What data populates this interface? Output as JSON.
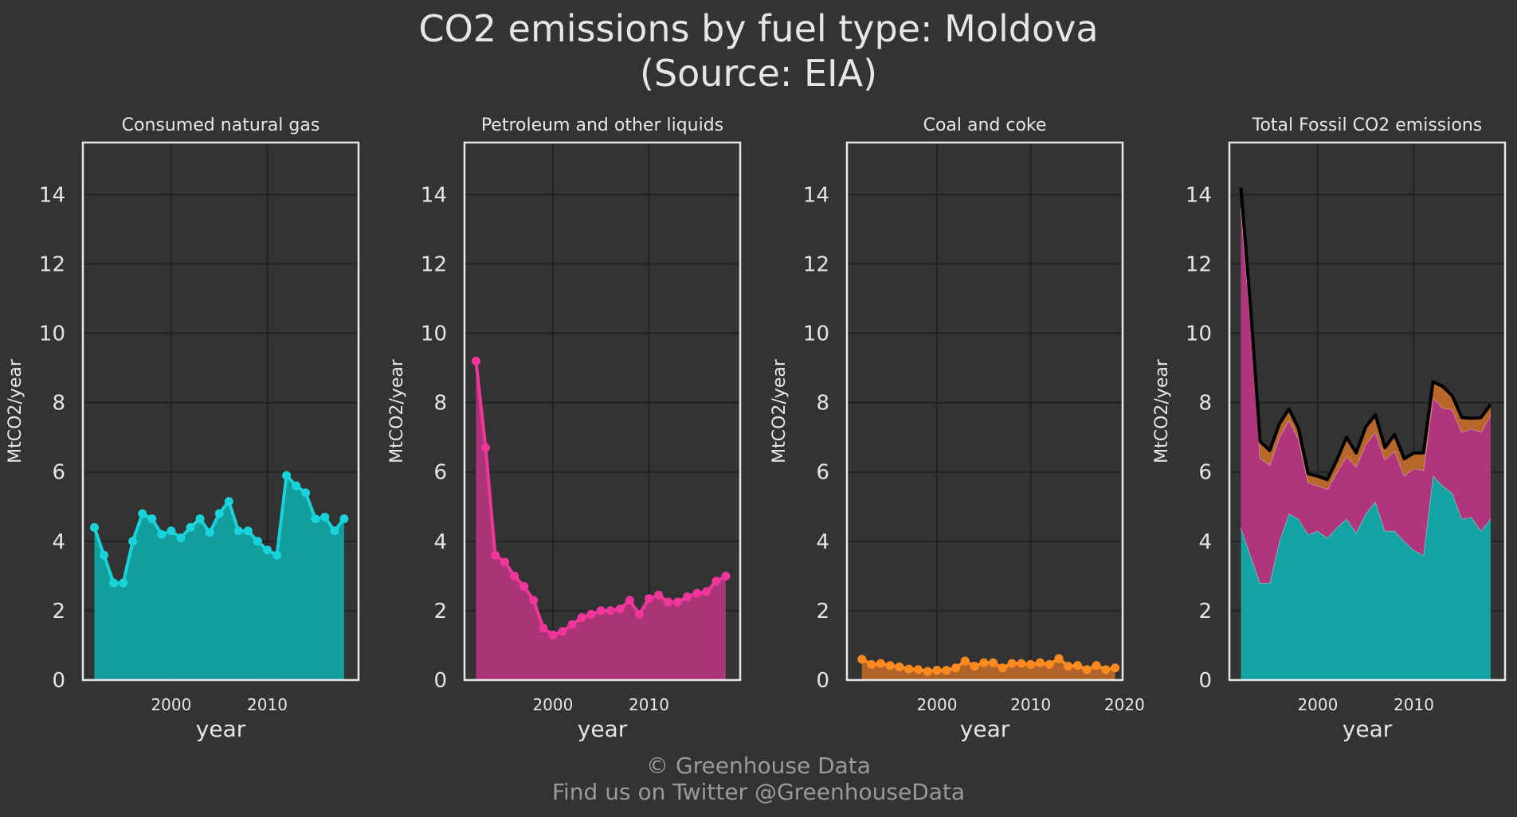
{
  "figure": {
    "title_line1": "CO2 emissions by fuel type: Moldova",
    "title_line2": "(Source: EIA)",
    "credit_line1": "© Greenhouse Data",
    "credit_line2": "Find us on Twitter @GreenhouseData"
  },
  "colors": {
    "background": "#333333",
    "grid": "#222222",
    "frame": "#e6e6e6",
    "text": "#e6e6e6",
    "credit": "#9a9a9a",
    "gas": "#19d3da",
    "gas_fill": "#13a3a3",
    "petroleum": "#f0359b",
    "petroleum_fill": "#b0357a",
    "coal": "#ff8a1f",
    "coal_fill": "#b8672a",
    "total_line": "#000000"
  },
  "chart_data": [
    {
      "type": "area",
      "title": "Consumed natural gas",
      "xlabel": "year",
      "ylabel": "MtCO2/year",
      "ylim": [
        0,
        15.5
      ],
      "xlim": [
        1990.8,
        2019.5
      ],
      "yticks": [
        0,
        2,
        4,
        6,
        8,
        10,
        12,
        14
      ],
      "xticks": [
        2000,
        2010
      ],
      "grid": true,
      "x": [
        1992,
        1993,
        1994,
        1995,
        1996,
        1997,
        1998,
        1999,
        2000,
        2001,
        2002,
        2003,
        2004,
        2005,
        2006,
        2007,
        2008,
        2009,
        2010,
        2011,
        2012,
        2013,
        2014,
        2015,
        2016,
        2017,
        2018
      ],
      "series": [
        {
          "values": [
            4.4,
            3.6,
            2.8,
            2.8,
            4.0,
            4.8,
            4.65,
            4.2,
            4.3,
            4.1,
            4.4,
            4.65,
            4.25,
            4.8,
            5.15,
            4.3,
            4.3,
            4.0,
            3.75,
            3.6,
            5.9,
            5.6,
            5.4,
            4.65,
            4.7,
            4.3,
            4.65
          ]
        }
      ]
    },
    {
      "type": "area",
      "title": "Petroleum and other liquids",
      "xlabel": "year",
      "ylabel": "MtCO2/year",
      "ylim": [
        0,
        15.5
      ],
      "xlim": [
        1990.8,
        2019.5
      ],
      "yticks": [
        0,
        2,
        4,
        6,
        8,
        10,
        12,
        14
      ],
      "xticks": [
        2000,
        2010
      ],
      "grid": true,
      "x": [
        1992,
        1993,
        1994,
        1995,
        1996,
        1997,
        1998,
        1999,
        2000,
        2001,
        2002,
        2003,
        2004,
        2005,
        2006,
        2007,
        2008,
        2009,
        2010,
        2011,
        2012,
        2013,
        2014,
        2015,
        2016,
        2017,
        2018
      ],
      "series": [
        {
          "values": [
            9.2,
            6.7,
            3.6,
            3.4,
            3.0,
            2.7,
            2.3,
            1.5,
            1.3,
            1.4,
            1.6,
            1.8,
            1.9,
            2.0,
            2.0,
            2.05,
            2.3,
            1.9,
            2.35,
            2.45,
            2.25,
            2.25,
            2.4,
            2.5,
            2.55,
            2.85,
            3.0
          ]
        }
      ]
    },
    {
      "type": "area",
      "title": "Coal and coke",
      "xlabel": "year",
      "ylabel": "MtCO2/year",
      "ylim": [
        0,
        15.5
      ],
      "xlim": [
        1990.4,
        2019.8
      ],
      "yticks": [
        0,
        2,
        4,
        6,
        8,
        10,
        12,
        14
      ],
      "xticks": [
        2000,
        2010,
        2020
      ],
      "grid": true,
      "x": [
        1992,
        1993,
        1994,
        1995,
        1996,
        1997,
        1998,
        1999,
        2000,
        2001,
        2002,
        2003,
        2004,
        2005,
        2006,
        2007,
        2008,
        2009,
        2010,
        2011,
        2012,
        2013,
        2014,
        2015,
        2016,
        2017,
        2018,
        2019
      ],
      "series": [
        {
          "values": [
            0.6,
            0.45,
            0.48,
            0.42,
            0.38,
            0.32,
            0.3,
            0.25,
            0.28,
            0.28,
            0.35,
            0.55,
            0.4,
            0.5,
            0.5,
            0.35,
            0.48,
            0.48,
            0.45,
            0.5,
            0.45,
            0.62,
            0.4,
            0.42,
            0.3,
            0.42,
            0.3,
            0.35
          ]
        }
      ]
    },
    {
      "type": "area",
      "title": "Total Fossil CO2 emissions",
      "xlabel": "year",
      "ylabel": "MtCO2/year",
      "ylim": [
        0,
        15.5
      ],
      "xlim": [
        1990.8,
        2019.5
      ],
      "yticks": [
        0,
        2,
        4,
        6,
        8,
        10,
        12,
        14
      ],
      "xticks": [
        2000,
        2010
      ],
      "grid": true,
      "stacked": true,
      "x": [
        1992,
        1993,
        1994,
        1995,
        1996,
        1997,
        1998,
        1999,
        2000,
        2001,
        2002,
        2003,
        2004,
        2005,
        2006,
        2007,
        2008,
        2009,
        2010,
        2011,
        2012,
        2013,
        2014,
        2015,
        2016,
        2017,
        2018
      ],
      "series": [
        {
          "values": [
            4.4,
            3.6,
            2.8,
            2.8,
            4.0,
            4.8,
            4.65,
            4.2,
            4.3,
            4.1,
            4.4,
            4.65,
            4.25,
            4.8,
            5.15,
            4.3,
            4.3,
            4.0,
            3.75,
            3.6,
            5.9,
            5.6,
            5.4,
            4.65,
            4.7,
            4.3,
            4.65
          ]
        },
        {
          "values": [
            9.2,
            6.7,
            3.6,
            3.4,
            3.0,
            2.7,
            2.3,
            1.5,
            1.3,
            1.4,
            1.6,
            1.8,
            1.9,
            2.0,
            2.0,
            2.05,
            2.3,
            1.9,
            2.35,
            2.45,
            2.25,
            2.25,
            2.4,
            2.5,
            2.55,
            2.85,
            3.0
          ]
        },
        {
          "values": [
            0.6,
            0.45,
            0.48,
            0.42,
            0.38,
            0.32,
            0.3,
            0.25,
            0.28,
            0.28,
            0.35,
            0.55,
            0.4,
            0.5,
            0.5,
            0.35,
            0.48,
            0.48,
            0.45,
            0.5,
            0.45,
            0.62,
            0.4,
            0.42,
            0.3,
            0.42,
            0.3
          ]
        }
      ]
    }
  ]
}
